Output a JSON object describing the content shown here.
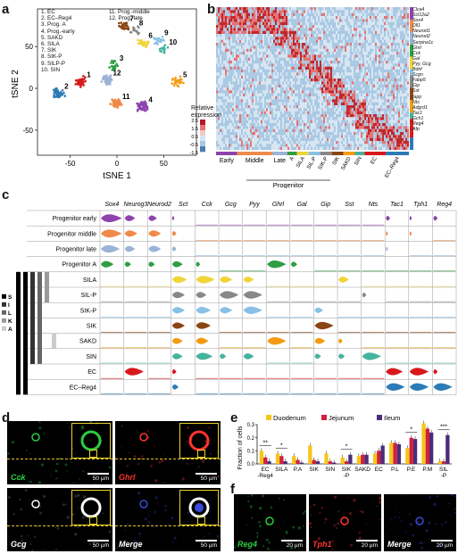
{
  "panels": {
    "a": "a",
    "b": "b",
    "c": "c",
    "d": "d",
    "e": "e",
    "f": "f"
  },
  "panel_a": {
    "legend_left": [
      "1. EC",
      "2. EC–Reg4",
      "3. Prog. A",
      "4. Prog.-early",
      "5. SAKD",
      "6. SILA",
      "7. SIK",
      "8. SIK-P",
      "9. SILP-P",
      "10. SIN"
    ],
    "legend_right": [
      "11. Prog.-middle",
      "12. Prog.-late"
    ],
    "xlabel": "tSNE 1",
    "ylabel": "tSNE 2",
    "xticks": [
      "-50",
      "0",
      "50"
    ],
    "yticks": [
      "50",
      "0",
      "-50"
    ],
    "clusters": [
      {
        "id": "1",
        "cx": -38,
        "cy": 8,
        "color": "#d7191c",
        "n": 40
      },
      {
        "id": "2",
        "cx": -62,
        "cy": -6,
        "color": "#2c7bb6",
        "n": 45
      },
      {
        "id": "3",
        "cx": -3,
        "cy": 28,
        "color": "#2f9e44",
        "n": 20
      },
      {
        "id": "4",
        "cx": 28,
        "cy": -22,
        "color": "#8e44ad",
        "n": 60
      },
      {
        "id": "5",
        "cx": 65,
        "cy": 8,
        "color": "#f39c12",
        "n": 30
      },
      {
        "id": "6",
        "cx": 28,
        "cy": 55,
        "color": "#f0d43a",
        "n": 25
      },
      {
        "id": "7",
        "cx": 8,
        "cy": 75,
        "color": "#8b4513",
        "n": 25
      },
      {
        "id": "8",
        "cx": 18,
        "cy": 70,
        "color": "#888888",
        "n": 15
      },
      {
        "id": "9",
        "cx": 45,
        "cy": 58,
        "color": "#88c0e6",
        "n": 20
      },
      {
        "id": "10",
        "cx": 50,
        "cy": 47,
        "color": "#45b39d",
        "n": 15
      },
      {
        "id": "11",
        "cx": 0,
        "cy": -18,
        "color": "#f08a4b",
        "n": 70
      },
      {
        "id": "12",
        "cx": -10,
        "cy": 10,
        "color": "#9bb3d6",
        "n": 50
      }
    ]
  },
  "panel_b": {
    "genes": [
      "Clca4",
      "Scl12a2",
      "Sox4",
      "Dll1",
      "Neurod1",
      "Neurod2",
      "Serpina1c",
      "Ghrl",
      "Cck",
      "Gal",
      "Pyy, Gcg",
      "Bdnf",
      "Scgn",
      "Fabp5",
      "Gip",
      "Sst",
      "Iapp",
      "Nts",
      "Adgrd1",
      "Tac1",
      "Gch1",
      "Reg4",
      "Afp"
    ],
    "colorbar_title": "Relative expression",
    "colorbar_ticks": [
      "2.5",
      "1.5",
      "0.5",
      "-0.5",
      "-1.5"
    ],
    "groups": [
      "Early",
      "Middle",
      "Late",
      "A",
      "SILA",
      "SIL-P",
      "SIK-P",
      "SIK",
      "SAKD",
      "SIN",
      "EC",
      "EC–Reg4"
    ],
    "progenitor_label": "Progenitor"
  },
  "panel_c": {
    "genes": [
      "Sox4",
      "Neurog3",
      "Neurod2",
      "Sct",
      "Cck",
      "Gcg",
      "Pyy",
      "Ghrl",
      "Gal",
      "Gip",
      "Sst",
      "Nts",
      "Tac1",
      "Tph1",
      "Reg4"
    ],
    "rows": [
      "Progenitor early",
      "Progenitor middle",
      "Progenitor late",
      "Progenitor A",
      "SILA",
      "SIL-P",
      "SIK-P",
      "SIK",
      "SAKD",
      "SIN",
      "EC",
      "EC–Reg4"
    ],
    "hormone_legend": [
      "S",
      "I",
      "L",
      "K",
      "A"
    ]
  },
  "panel_d": {
    "tiles": [
      {
        "label": "Cck",
        "color": "#2ecc40"
      },
      {
        "label": "Ghrl",
        "color": "#ff3333"
      },
      {
        "label": "Gcg",
        "color": "#ffffff"
      },
      {
        "label": "Merge",
        "color": "#ffffff"
      }
    ],
    "scale": "50 µm"
  },
  "panel_e": {
    "chart_data": {
      "type": "bar",
      "ylabel": "Fraction of cells",
      "ylim": [
        0,
        0.3
      ],
      "yticks": [
        "0.0",
        "0.1",
        "0.2",
        "0.3"
      ],
      "categories": [
        "EC\n-Reg4",
        "SILA",
        "P.A",
        "SIK",
        "SIN",
        "SIK\n-P",
        "SAKD",
        "EC",
        "P.L",
        "P.E",
        "P.M",
        "SIL\n-P"
      ],
      "series": [
        {
          "name": "Duodenum",
          "color": "#f5c518",
          "values": [
            0.1,
            0.08,
            0.06,
            0.14,
            0.08,
            0.05,
            0.06,
            0.08,
            0.16,
            0.12,
            0.31,
            0.02
          ]
        },
        {
          "name": "Jejunum",
          "color": "#d11f3c",
          "values": [
            0.05,
            0.06,
            0.03,
            0.03,
            0.02,
            0.02,
            0.07,
            0.1,
            0.16,
            0.2,
            0.27,
            0.02
          ]
        },
        {
          "name": "Ileum",
          "color": "#4b2c7a",
          "values": [
            0.02,
            0.02,
            0.01,
            0.02,
            0.01,
            0.07,
            0.07,
            0.14,
            0.15,
            0.19,
            0.24,
            0.22
          ]
        }
      ],
      "significance": [
        {
          "cat": 0,
          "text": "**"
        },
        {
          "cat": 1,
          "text": "*"
        },
        {
          "cat": 5,
          "text": "*"
        },
        {
          "cat": 9,
          "text": "*"
        },
        {
          "cat": 11,
          "text": "***"
        }
      ]
    }
  },
  "panel_f": {
    "tiles": [
      {
        "label": "Reg4",
        "color": "#2ecc40"
      },
      {
        "label": "Tph1",
        "color": "#ff3333"
      },
      {
        "label": "Merge",
        "color": "#ffffff"
      }
    ],
    "scale": "20 µm"
  }
}
